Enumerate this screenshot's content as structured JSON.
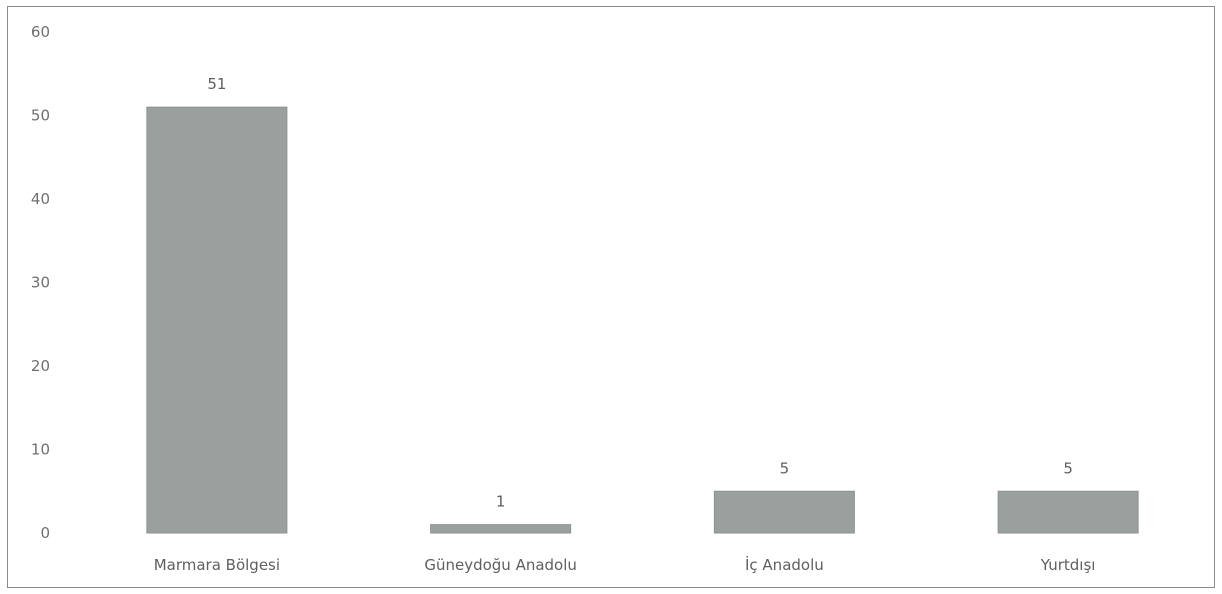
{
  "chart_data": {
    "type": "bar",
    "title": "",
    "xlabel": "",
    "ylabel": "",
    "categories": [
      "Marmara Bölgesi",
      "Güneydoğu Anadolu",
      "İç Anadolu",
      "Yurtdışı"
    ],
    "values": [
      51,
      1,
      5,
      5
    ],
    "data_labels": [
      "51",
      "1",
      "5",
      "5"
    ],
    "y_ticks": [
      0,
      10,
      20,
      30,
      40,
      50,
      60
    ],
    "y_tick_labels": [
      "0",
      "10",
      "20",
      "30",
      "40",
      "50",
      "60"
    ],
    "ylim": [
      0,
      60
    ],
    "grid": false,
    "legend": "none",
    "bar_color": "#9aa09d"
  }
}
